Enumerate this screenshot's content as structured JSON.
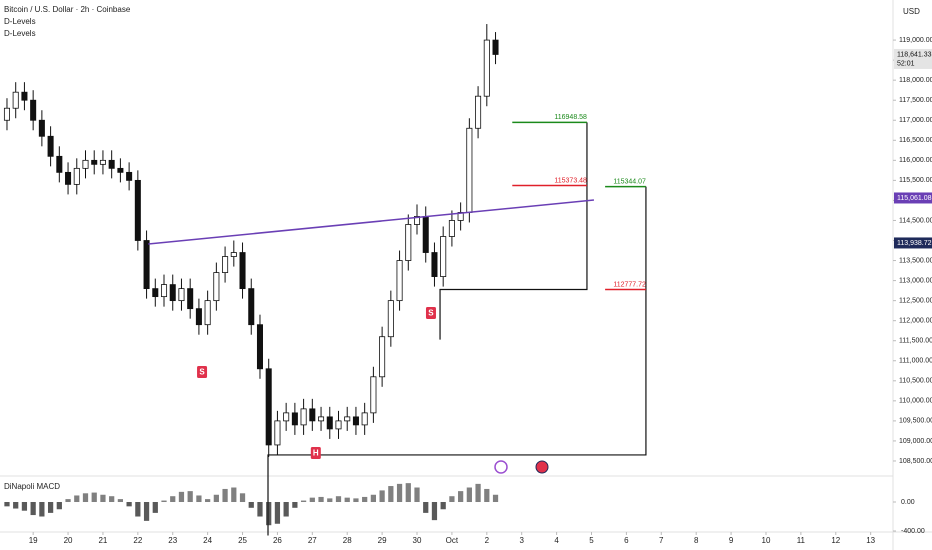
{
  "chart_data": {
    "type": "candlestick",
    "title": "Bitcoin / U.S. Dollar · 2h · Coinbase",
    "indicators": [
      "D-Levels",
      "D-Levels"
    ],
    "currency": "USD",
    "xlim": [
      -0.95,
      24.64
    ],
    "xticks": [
      {
        "value": 0,
        "label": "19"
      },
      {
        "value": 1,
        "label": "20"
      },
      {
        "value": 2,
        "label": "21"
      },
      {
        "value": 3,
        "label": "22"
      },
      {
        "value": 4,
        "label": "23"
      },
      {
        "value": 5,
        "label": "24"
      },
      {
        "value": 6,
        "label": "25"
      },
      {
        "value": 7,
        "label": "26"
      },
      {
        "value": 8,
        "label": "27"
      },
      {
        "value": 9,
        "label": "28"
      },
      {
        "value": 10,
        "label": "29"
      },
      {
        "value": 11,
        "label": "30"
      },
      {
        "value": 12,
        "label": "Oct"
      },
      {
        "value": 13,
        "label": "2"
      },
      {
        "value": 14,
        "label": "3"
      },
      {
        "value": 15,
        "label": "4"
      },
      {
        "value": 16,
        "label": "5"
      },
      {
        "value": 17,
        "label": "6"
      },
      {
        "value": 18,
        "label": "7"
      },
      {
        "value": 19,
        "label": "8"
      },
      {
        "value": 20,
        "label": "9"
      },
      {
        "value": 21,
        "label": "10"
      },
      {
        "value": 22,
        "label": "11"
      },
      {
        "value": 23,
        "label": "12"
      },
      {
        "value": 24,
        "label": "13"
      }
    ],
    "ylim": [
      108150,
      120000
    ],
    "yticks": [
      {
        "value": 108500,
        "label": "108,500.00"
      },
      {
        "value": 109000,
        "label": "109,000.00"
      },
      {
        "value": 109500,
        "label": "109,500.00"
      },
      {
        "value": 110000,
        "label": "110,000.00"
      },
      {
        "value": 110500,
        "label": "110,500.00"
      },
      {
        "value": 111000,
        "label": "111,000.00"
      },
      {
        "value": 111500,
        "label": "111,500.00"
      },
      {
        "value": 112000,
        "label": "112,000.00"
      },
      {
        "value": 112500,
        "label": "112,500.00"
      },
      {
        "value": 113000,
        "label": "113,000.00"
      },
      {
        "value": 113500,
        "label": "113,500.00"
      },
      {
        "value": 114000,
        "label": "114,000.00"
      },
      {
        "value": 114500,
        "label": "114,500.00"
      },
      {
        "value": 115000,
        "label": "115,000.00"
      },
      {
        "value": 115500,
        "label": "115,500.00"
      },
      {
        "value": 116000,
        "label": "116,000.00"
      },
      {
        "value": 116500,
        "label": "116,500.00"
      },
      {
        "value": 117000,
        "label": "117,000.00"
      },
      {
        "value": 117500,
        "label": "117,500.00"
      },
      {
        "value": 118000,
        "label": "118,000.00"
      },
      {
        "value": 118500,
        "label": "118,500.00"
      },
      {
        "value": 119000,
        "label": "119,000.00"
      }
    ],
    "up_color": "#ffffff",
    "down_color": "#111111",
    "x": [
      -0.75,
      -0.5,
      -0.25,
      0,
      0.25,
      0.5,
      0.75,
      1,
      1.25,
      1.5,
      1.75,
      2,
      2.25,
      2.5,
      2.75,
      3,
      3.25,
      3.5,
      3.75,
      4,
      4.25,
      4.5,
      4.75,
      5,
      5.25,
      5.5,
      5.75,
      6,
      6.25,
      6.5,
      6.75,
      7,
      7.25,
      7.5,
      7.75,
      8,
      8.25,
      8.5,
      8.75,
      9,
      9.25,
      9.5,
      9.75,
      10,
      10.25,
      10.5,
      10.75,
      11,
      11.25,
      11.5,
      11.75,
      12,
      12.25,
      12.5,
      12.75,
      13,
      13.25
    ],
    "open": [
      117000,
      117300,
      117700,
      117500,
      117000,
      116600,
      116100,
      115700,
      115400,
      115800,
      116000,
      115900,
      116000,
      115800,
      115700,
      115500,
      114000,
      112800,
      112600,
      112900,
      112500,
      112800,
      112300,
      111900,
      112500,
      113200,
      113600,
      113700,
      112800,
      111900,
      110800,
      108900,
      109500,
      109700,
      109400,
      109800,
      109500,
      109600,
      109300,
      109500,
      109600,
      109400,
      109700,
      110600,
      111600,
      112500,
      113500,
      114400,
      114600,
      113700,
      113100,
      114100,
      114500,
      114700,
      116800,
      117600,
      119000
    ],
    "high": [
      117550,
      117950,
      117950,
      117750,
      117250,
      116850,
      116350,
      115950,
      116050,
      116250,
      116250,
      116250,
      116250,
      116050,
      115950,
      115750,
      114250,
      113050,
      113150,
      113150,
      113050,
      113050,
      112550,
      112750,
      113450,
      113850,
      114000,
      113950,
      113050,
      112150,
      111050,
      109750,
      109950,
      109950,
      110050,
      110050,
      109850,
      109850,
      109750,
      109850,
      109850,
      109950,
      110850,
      111850,
      112750,
      113750,
      114650,
      114900,
      114850,
      113950,
      114350,
      114750,
      114950,
      117050,
      117850,
      119400,
      119200
    ],
    "low": [
      116750,
      117050,
      117250,
      116750,
      116350,
      115850,
      115450,
      115150,
      115150,
      115550,
      115650,
      115650,
      115550,
      115450,
      115250,
      113750,
      112550,
      112350,
      112350,
      112250,
      112250,
      112050,
      111650,
      111650,
      112250,
      112950,
      113350,
      112550,
      111650,
      110550,
      108600,
      108650,
      109250,
      109150,
      109150,
      109250,
      109250,
      109050,
      109050,
      109250,
      109150,
      109150,
      109450,
      110350,
      111350,
      112250,
      113250,
      114150,
      113450,
      112850,
      112850,
      113850,
      114250,
      114450,
      116550,
      117350,
      118400
    ],
    "close": [
      117300,
      117700,
      117500,
      117000,
      116600,
      116100,
      115700,
      115400,
      115800,
      116000,
      115900,
      116000,
      115800,
      115700,
      115500,
      114000,
      112800,
      112600,
      112900,
      112500,
      112800,
      112300,
      111900,
      112500,
      113200,
      113600,
      113700,
      112800,
      111900,
      110800,
      108900,
      109500,
      109700,
      109400,
      109800,
      109500,
      109600,
      109300,
      109500,
      109600,
      109400,
      109700,
      110600,
      111600,
      112500,
      113500,
      114400,
      114600,
      113700,
      113100,
      114100,
      114500,
      114700,
      116800,
      117600,
      119000,
      118641.33
    ],
    "trendline": {
      "x": [
        3.3,
        16.07
      ],
      "y": [
        113913,
        115010
      ],
      "color": "#6a3fb5"
    },
    "levels": [
      {
        "value": 116948.58,
        "x": [
          13.73,
          15.87
        ],
        "color": "#1b8a1b"
      },
      {
        "value": 115373.48,
        "x": [
          13.73,
          15.87
        ],
        "color": "#e0202a"
      },
      {
        "value": 115344.07,
        "x": [
          16.39,
          17.56
        ],
        "color": "#1b8a1b"
      },
      {
        "value": 112777.72,
        "x": [
          16.39,
          17.56
        ],
        "color": "#e0202a"
      }
    ],
    "boxes": [
      {
        "x": [
          11.66,
          15.87
        ],
        "y": [
          112777.72,
          116948.58
        ]
      },
      {
        "x": [
          6.73,
          17.56
        ],
        "y": [
          108650,
          115344.07
        ]
      }
    ],
    "annotations": [
      {
        "text": "S",
        "x": 4.84,
        "y": 110720,
        "color": "#e0314b"
      },
      {
        "text": "S",
        "x": 11.4,
        "y": 112190,
        "color": "#e0314b"
      },
      {
        "text": "H",
        "x": 8.1,
        "y": 108700,
        "color": "#e0314b"
      }
    ],
    "price_labels": [
      {
        "value": 118641.33,
        "label": "118,641.33",
        "sub": "52:01",
        "color": "#e4e4e4",
        "text_color": "#111111"
      },
      {
        "value": 115061.08,
        "label": "115,061.08",
        "color": "#6a3fb5",
        "text_color": "#ffffff"
      },
      {
        "value": 113938.72,
        "label": "113,938.72",
        "color": "#1e2a5a",
        "text_color": "#ffffff"
      }
    ],
    "macd": {
      "name": "DiNapoli MACD",
      "ylim": [
        -455,
        331
      ],
      "yticks": [
        {
          "value": 0,
          "label": "0.00"
        },
        {
          "value": -400,
          "label": "-400.00"
        }
      ],
      "values": [
        -60,
        -90,
        -120,
        -180,
        -200,
        -150,
        -100,
        40,
        90,
        120,
        130,
        100,
        80,
        40,
        -60,
        -200,
        -260,
        -150,
        20,
        80,
        140,
        150,
        90,
        40,
        100,
        180,
        200,
        120,
        -80,
        -200,
        -320,
        -300,
        -200,
        -80,
        20,
        60,
        70,
        50,
        80,
        60,
        50,
        70,
        100,
        160,
        220,
        250,
        260,
        200,
        -150,
        -250,
        -100,
        80,
        150,
        200,
        250,
        180,
        100
      ]
    }
  }
}
